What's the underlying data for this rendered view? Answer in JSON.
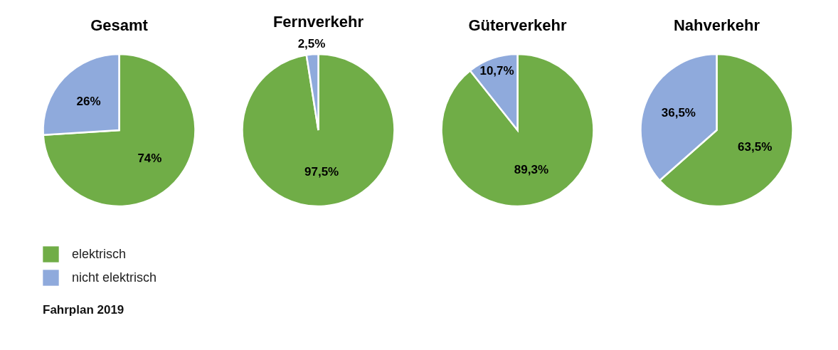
{
  "chart_data": [
    {
      "type": "pie",
      "title": "Gesamt",
      "categories": [
        "elektrisch",
        "nicht elektrisch"
      ],
      "values": [
        74,
        26
      ],
      "colors": [
        "#70ad47",
        "#8faadc"
      ],
      "value_labels": [
        "74%",
        "26%"
      ],
      "legend": "bottom left",
      "annotations": [
        "Fahrplan 2019"
      ]
    },
    {
      "type": "pie",
      "title": "Fernverkehr",
      "categories": [
        null,
        null
      ],
      "values": [
        97.5,
        2.5
      ],
      "colors": [
        "#70ad47",
        "#8faadc"
      ],
      "value_labels": [
        "97,5%",
        "2,5%"
      ]
    },
    {
      "type": "pie",
      "title": "Güterverkehr",
      "categories": [
        null,
        null
      ],
      "values": [
        89.3,
        10.7
      ],
      "colors": [
        "#70ad47",
        "#8faadc"
      ],
      "value_labels": [
        "89,3%",
        "10,7%"
      ]
    },
    {
      "type": "pie",
      "title": "Nahverkehr",
      "categories": [
        null,
        null
      ],
      "values": [
        63.5,
        36.5
      ],
      "colors": [
        "#70ad47",
        "#8faadc"
      ],
      "value_labels": [
        "63,5%",
        "36,5%"
      ]
    }
  ]
}
